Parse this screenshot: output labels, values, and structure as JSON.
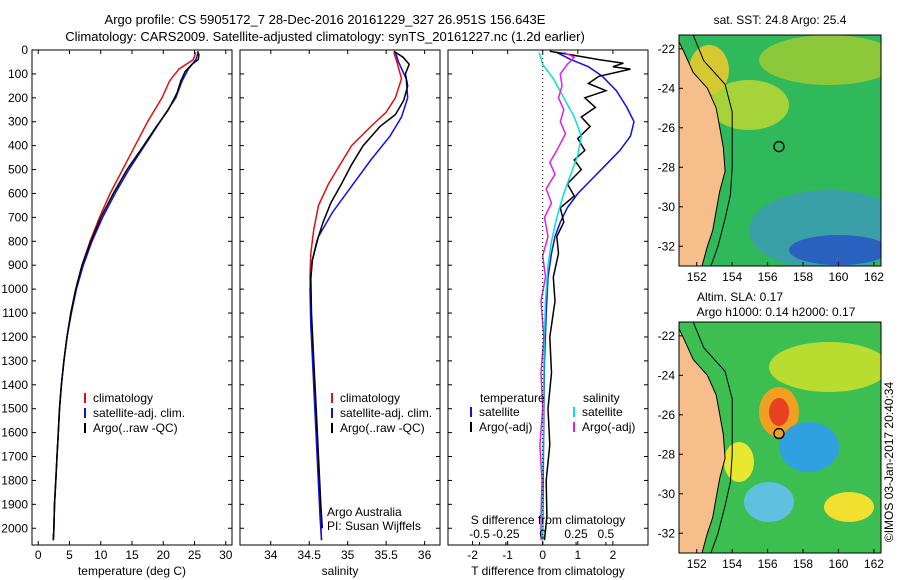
{
  "header": {
    "line1": "Argo profile: CS 5905172_7 28-Dec-2016 20161229_327 26.951S 156.643E",
    "line2": "Climatology: CARS2009. Satellite-adjusted climatology: synTS_20161227.nc (1.2d earlier)"
  },
  "colors": {
    "climatology": "#e01010",
    "satellite": "#1010e0",
    "argo": "#000000",
    "salinity_satellite": "#00e0e0",
    "salinity_argo": "#e020e0"
  },
  "chart_data": [
    {
      "id": "temperature",
      "type": "line",
      "xlabel": "temperature (deg C)",
      "xlim": [
        -1,
        31
      ],
      "ylim": [
        2070,
        0
      ],
      "xticks": [
        0,
        5,
        10,
        15,
        20,
        25,
        30
      ],
      "yticks": [
        0,
        100,
        200,
        300,
        400,
        500,
        600,
        700,
        800,
        900,
        1000,
        1100,
        1200,
        1300,
        1400,
        1500,
        1600,
        1700,
        1800,
        1900,
        2000
      ],
      "legend": [
        "climatology",
        "satellite-adj. clim.",
        "Argo(..raw -QC)"
      ],
      "series": [
        {
          "name": "climatology",
          "color": "#e01010",
          "points": [
            [
              25.2,
              10
            ],
            [
              24.8,
              40
            ],
            [
              22.5,
              80
            ],
            [
              21.0,
              130
            ],
            [
              19.8,
              200
            ],
            [
              17.5,
              300
            ],
            [
              15.5,
              400
            ],
            [
              13.5,
              500
            ],
            [
              11.5,
              600
            ],
            [
              9.8,
              700
            ],
            [
              8.3,
              800
            ],
            [
              7.0,
              900
            ],
            [
              6.0,
              1000
            ],
            [
              5.2,
              1100
            ],
            [
              4.6,
              1200
            ],
            [
              4.1,
              1300
            ],
            [
              3.7,
              1400
            ],
            [
              3.4,
              1500
            ],
            [
              3.2,
              1600
            ],
            [
              3.0,
              1700
            ],
            [
              2.8,
              1800
            ],
            [
              2.6,
              1900
            ],
            [
              2.5,
              2000
            ],
            [
              2.4,
              2050
            ]
          ]
        },
        {
          "name": "satellite-adj. clim.",
          "color": "#1010e0",
          "points": [
            [
              25.6,
              10
            ],
            [
              25.2,
              40
            ],
            [
              24.0,
              80
            ],
            [
              23.0,
              130
            ],
            [
              22.0,
              200
            ],
            [
              19.5,
              300
            ],
            [
              17.0,
              400
            ],
            [
              14.5,
              500
            ],
            [
              12.3,
              600
            ],
            [
              10.3,
              700
            ],
            [
              8.6,
              800
            ],
            [
              7.2,
              900
            ],
            [
              6.1,
              1000
            ],
            [
              5.3,
              1100
            ],
            [
              4.6,
              1200
            ],
            [
              4.1,
              1300
            ],
            [
              3.7,
              1400
            ],
            [
              3.4,
              1500
            ],
            [
              3.2,
              1600
            ],
            [
              3.0,
              1700
            ],
            [
              2.8,
              1800
            ],
            [
              2.6,
              1900
            ],
            [
              2.5,
              2000
            ],
            [
              2.4,
              2050
            ]
          ]
        },
        {
          "name": "Argo(..raw -QC)",
          "color": "#000000",
          "points": [
            [
              25.5,
              5
            ],
            [
              25.7,
              20
            ],
            [
              25.6,
              40
            ],
            [
              24.6,
              60
            ],
            [
              23.5,
              90
            ],
            [
              22.8,
              130
            ],
            [
              22.2,
              180
            ],
            [
              20.8,
              250
            ],
            [
              18.9,
              320
            ],
            [
              16.6,
              410
            ],
            [
              14.2,
              500
            ],
            [
              12.0,
              600
            ],
            [
              10.0,
              700
            ],
            [
              8.4,
              800
            ],
            [
              7.0,
              900
            ],
            [
              6.0,
              1000
            ],
            [
              5.2,
              1100
            ],
            [
              4.6,
              1200
            ],
            [
              4.1,
              1300
            ],
            [
              3.7,
              1400
            ],
            [
              3.4,
              1500
            ],
            [
              3.2,
              1600
            ],
            [
              3.0,
              1700
            ],
            [
              2.8,
              1800
            ],
            [
              2.6,
              1900
            ],
            [
              2.5,
              2000
            ],
            [
              2.4,
              2050
            ]
          ]
        }
      ]
    },
    {
      "id": "salinity",
      "type": "line",
      "xlabel": "salinity",
      "xlim": [
        33.6,
        36.2
      ],
      "ylim": [
        2070,
        0
      ],
      "xticks": [
        34,
        34.5,
        35,
        35.5,
        36
      ],
      "legend": [
        "climatology",
        "satellite-adj. clim.",
        "Argo(..raw -QC)"
      ],
      "annotations": [
        "Argo Australia",
        "PI: Susan Wijffels"
      ],
      "series": [
        {
          "name": "climatology",
          "color": "#e01010",
          "points": [
            [
              35.6,
              10
            ],
            [
              35.64,
              50
            ],
            [
              35.7,
              120
            ],
            [
              35.62,
              200
            ],
            [
              35.5,
              260
            ],
            [
              35.3,
              320
            ],
            [
              35.05,
              400
            ],
            [
              34.9,
              480
            ],
            [
              34.75,
              560
            ],
            [
              34.62,
              650
            ],
            [
              34.56,
              750
            ],
            [
              34.52,
              850
            ],
            [
              34.51,
              950
            ],
            [
              34.52,
              1100
            ],
            [
              34.55,
              1300
            ],
            [
              34.58,
              1500
            ],
            [
              34.61,
              1700
            ],
            [
              34.64,
              1900
            ],
            [
              34.66,
              2050
            ]
          ]
        },
        {
          "name": "satellite-adj. clim.",
          "color": "#1010e0",
          "points": [
            [
              35.62,
              10
            ],
            [
              35.66,
              50
            ],
            [
              35.76,
              120
            ],
            [
              35.78,
              200
            ],
            [
              35.7,
              280
            ],
            [
              35.55,
              360
            ],
            [
              35.3,
              460
            ],
            [
              35.05,
              570
            ],
            [
              34.8,
              680
            ],
            [
              34.62,
              780
            ],
            [
              34.54,
              880
            ],
            [
              34.51,
              1000
            ],
            [
              34.52,
              1150
            ],
            [
              34.55,
              1350
            ],
            [
              34.58,
              1550
            ],
            [
              34.61,
              1750
            ],
            [
              34.64,
              1950
            ],
            [
              34.66,
              2050
            ]
          ]
        },
        {
          "name": "Argo(..raw -QC)",
          "color": "#000000",
          "points": [
            [
              35.6,
              5
            ],
            [
              35.72,
              30
            ],
            [
              35.8,
              60
            ],
            [
              35.75,
              100
            ],
            [
              35.78,
              150
            ],
            [
              35.73,
              210
            ],
            [
              35.62,
              270
            ],
            [
              35.42,
              320
            ],
            [
              35.2,
              400
            ],
            [
              35.05,
              480
            ],
            [
              34.92,
              560
            ],
            [
              34.78,
              640
            ],
            [
              34.68,
              720
            ],
            [
              34.6,
              800
            ],
            [
              34.54,
              880
            ],
            [
              34.52,
              950
            ],
            [
              34.53,
              1100
            ],
            [
              34.56,
              1300
            ],
            [
              34.59,
              1500
            ],
            [
              34.62,
              1700
            ],
            [
              34.65,
              1900
            ],
            [
              34.67,
              2000
            ]
          ]
        }
      ]
    },
    {
      "id": "difference",
      "type": "line",
      "xlabel": "T difference from climatology",
      "top_xlabel": "S difference from climatology",
      "xlim": [
        -2.7,
        3.0
      ],
      "ylim": [
        2070,
        0
      ],
      "xticks": [
        -2,
        -1,
        0,
        1,
        2
      ],
      "s_xticks": [
        "-0.5",
        "-0.25",
        "0",
        "0.25",
        "0.5"
      ],
      "legend_left_title": "temperature",
      "legend_right_title": "salinity",
      "legend": [
        "satellite",
        "Argo(-adj)",
        "satellite",
        "Argo(-adj)"
      ],
      "series": [
        {
          "name": "temperature satellite",
          "color": "#1010e0",
          "points": [
            [
              0.4,
              10
            ],
            [
              0.8,
              40
            ],
            [
              1.3,
              70
            ],
            [
              1.7,
              110
            ],
            [
              2.1,
              170
            ],
            [
              2.4,
              240
            ],
            [
              2.6,
              300
            ],
            [
              2.5,
              360
            ],
            [
              2.2,
              420
            ],
            [
              1.8,
              480
            ],
            [
              1.4,
              540
            ],
            [
              1.0,
              600
            ],
            [
              0.7,
              660
            ],
            [
              0.5,
              720
            ],
            [
              0.35,
              780
            ],
            [
              0.25,
              850
            ],
            [
              0.15,
              950
            ],
            [
              0.1,
              1100
            ],
            [
              0.05,
              1300
            ],
            [
              0.03,
              1500
            ],
            [
              0.02,
              1700
            ],
            [
              0.01,
              1900
            ],
            [
              0.0,
              2050
            ]
          ]
        },
        {
          "name": "temperature Argo(-adj)",
          "color": "#000000",
          "points": [
            [
              0.2,
              5
            ],
            [
              0.8,
              20
            ],
            [
              1.6,
              40
            ],
            [
              2.3,
              55
            ],
            [
              2.0,
              70
            ],
            [
              2.5,
              80
            ],
            [
              1.6,
              110
            ],
            [
              1.3,
              140
            ],
            [
              1.8,
              170
            ],
            [
              1.2,
              200
            ],
            [
              1.5,
              240
            ],
            [
              1.1,
              280
            ],
            [
              1.35,
              320
            ],
            [
              1.0,
              370
            ],
            [
              1.2,
              420
            ],
            [
              0.9,
              460
            ],
            [
              1.1,
              500
            ],
            [
              0.7,
              560
            ],
            [
              0.9,
              610
            ],
            [
              0.5,
              660
            ],
            [
              0.6,
              720
            ],
            [
              0.4,
              780
            ],
            [
              0.45,
              850
            ],
            [
              0.3,
              950
            ],
            [
              0.35,
              1050
            ],
            [
              0.2,
              1200
            ],
            [
              0.25,
              1350
            ],
            [
              0.15,
              1500
            ],
            [
              0.2,
              1650
            ],
            [
              0.1,
              1800
            ],
            [
              0.12,
              1950
            ],
            [
              0.05,
              2050
            ]
          ]
        },
        {
          "name": "salinity satellite",
          "color": "#00e0e0",
          "points": [
            [
              -0.1,
              10
            ],
            [
              0.0,
              60
            ],
            [
              0.3,
              120
            ],
            [
              0.6,
              200
            ],
            [
              0.9,
              280
            ],
            [
              1.1,
              360
            ],
            [
              1.0,
              440
            ],
            [
              0.8,
              520
            ],
            [
              0.6,
              600
            ],
            [
              0.4,
              700
            ],
            [
              0.25,
              800
            ],
            [
              0.15,
              900
            ],
            [
              0.08,
              1050
            ],
            [
              0.04,
              1250
            ],
            [
              0.02,
              1500
            ],
            [
              0.0,
              1800
            ],
            [
              0.0,
              2050
            ]
          ]
        },
        {
          "name": "salinity Argo(-adj)",
          "color": "#e020e0",
          "points": [
            [
              0.6,
              10
            ],
            [
              0.9,
              30
            ],
            [
              0.7,
              60
            ],
            [
              0.5,
              100
            ],
            [
              0.55,
              150
            ],
            [
              0.45,
              200
            ],
            [
              0.6,
              250
            ],
            [
              0.5,
              300
            ],
            [
              0.65,
              350
            ],
            [
              0.4,
              420
            ],
            [
              0.2,
              470
            ],
            [
              0.35,
              520
            ],
            [
              0.1,
              580
            ],
            [
              0.25,
              640
            ],
            [
              0.05,
              700
            ],
            [
              0.15,
              780
            ],
            [
              0.0,
              860
            ],
            [
              0.08,
              950
            ],
            [
              -0.05,
              1050
            ],
            [
              0.03,
              1200
            ],
            [
              -0.05,
              1350
            ],
            [
              0.0,
              1500
            ],
            [
              -0.08,
              1650
            ],
            [
              -0.02,
              1800
            ],
            [
              -0.05,
              1950
            ],
            [
              -0.05,
              2050
            ]
          ]
        }
      ]
    }
  ],
  "maps": {
    "xticks": [
      "152",
      "154",
      "156",
      "158",
      "160",
      "162"
    ],
    "yticks": [
      "-22",
      "-24",
      "-26",
      "-28",
      "-30",
      "-32"
    ],
    "sst_title": "sat. SST: 24.8 Argo: 25.4",
    "sla_title_line1": "Altim. SLA: 0.17",
    "sla_title_line2": "Argo h1000: 0.14 h2000: 0.17"
  },
  "footer": {
    "credit": "©IMOS 03-Jan-2017 20:40:34"
  }
}
